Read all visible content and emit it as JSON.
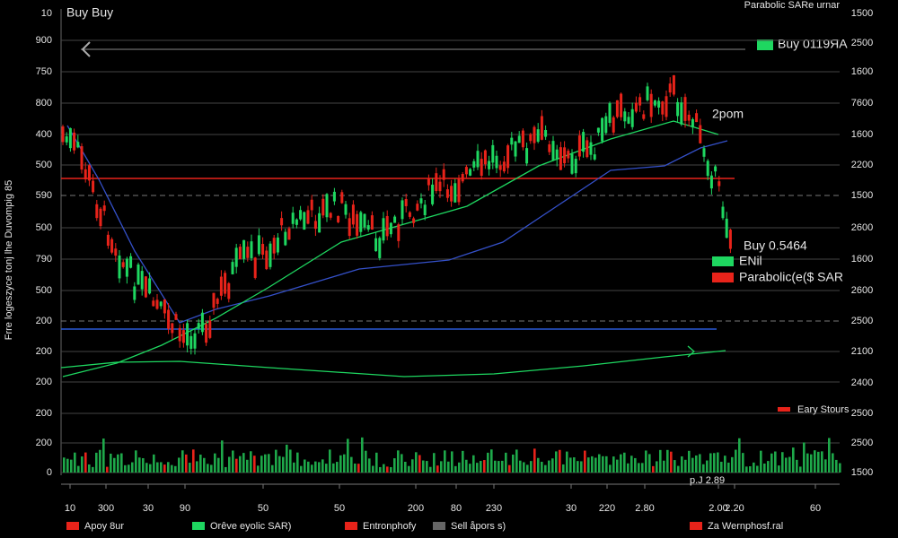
{
  "header": {
    "title": "Buy Buy",
    "corner": "10",
    "top_right": "Parabolic SARe urnar"
  },
  "side_label": "Frre logeszyce tonj lhe Duvompig 85",
  "left_axis": [
    "900",
    "750",
    "800",
    "400",
    "500",
    "590",
    "500",
    "790",
    "500",
    "200",
    "200",
    "200",
    "200",
    "200",
    "0"
  ],
  "right_axis": [
    "1500",
    "2500",
    "1600",
    "7600",
    "1600",
    "2200",
    "1500",
    "2600",
    "1600",
    "2600",
    "2500",
    "2100",
    "2400",
    "2500",
    "2500",
    "1500"
  ],
  "x_axis": [
    "10",
    "300",
    "30",
    "90",
    "50",
    "50",
    "200",
    "80",
    "230",
    "30",
    "220",
    "2.80",
    "2.00",
    "2.20",
    "60"
  ],
  "annotations": {
    "buy_top": "Buy 0119ЯА",
    "time": "2pom",
    "buy_mid": "Buy 0.5464",
    "small": "p.J 2.89"
  },
  "legend": [
    {
      "label": "ENil",
      "color": "#1ed760"
    },
    {
      "label": "Parabolic(e($ SAR",
      "color": "#e8231a"
    }
  ],
  "small_legend": {
    "label": "Eary Stours",
    "color": "#e8231a"
  },
  "bottom_legend": [
    {
      "label": "Apoy 8ur",
      "color": "#e8231a"
    },
    {
      "label": "Orêve eyolic SAR)",
      "color": "#1ed760"
    },
    {
      "label": "Entronphofy",
      "color": "#e8231a"
    },
    {
      "label": "Sell åpors s)",
      "color": "#666666"
    },
    {
      "label": "Za Wernphosf.ral",
      "color": "#e8231a"
    }
  ]
}
